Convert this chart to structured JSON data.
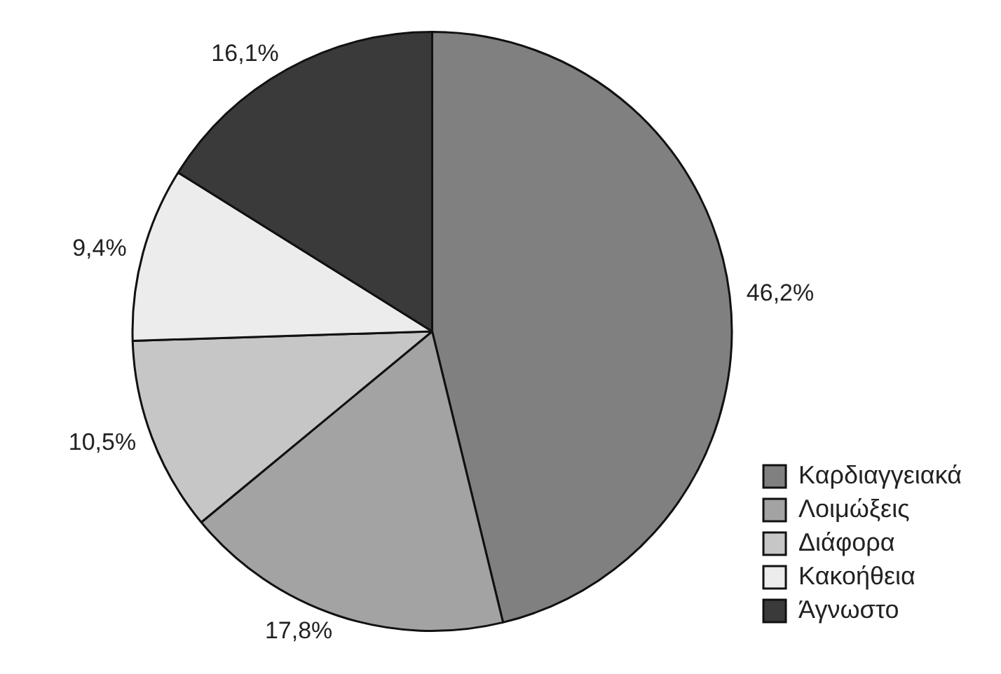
{
  "chart_data": {
    "type": "pie",
    "categories": [
      "Καρδιαγγειακά",
      "Λοιμώξεις",
      "Διάφορα",
      "Κακοήθεια",
      "Άγνωστο"
    ],
    "values": [
      46.2,
      17.8,
      10.5,
      9.4,
      16.1
    ],
    "value_labels": [
      "46,2%",
      "17,8%",
      "10,5%",
      "9,4%",
      "16,1%"
    ],
    "colors": [
      "#808080",
      "#a3a3a3",
      "#c6c6c6",
      "#ececec",
      "#3a3a3a"
    ],
    "legend": "bottom right"
  }
}
